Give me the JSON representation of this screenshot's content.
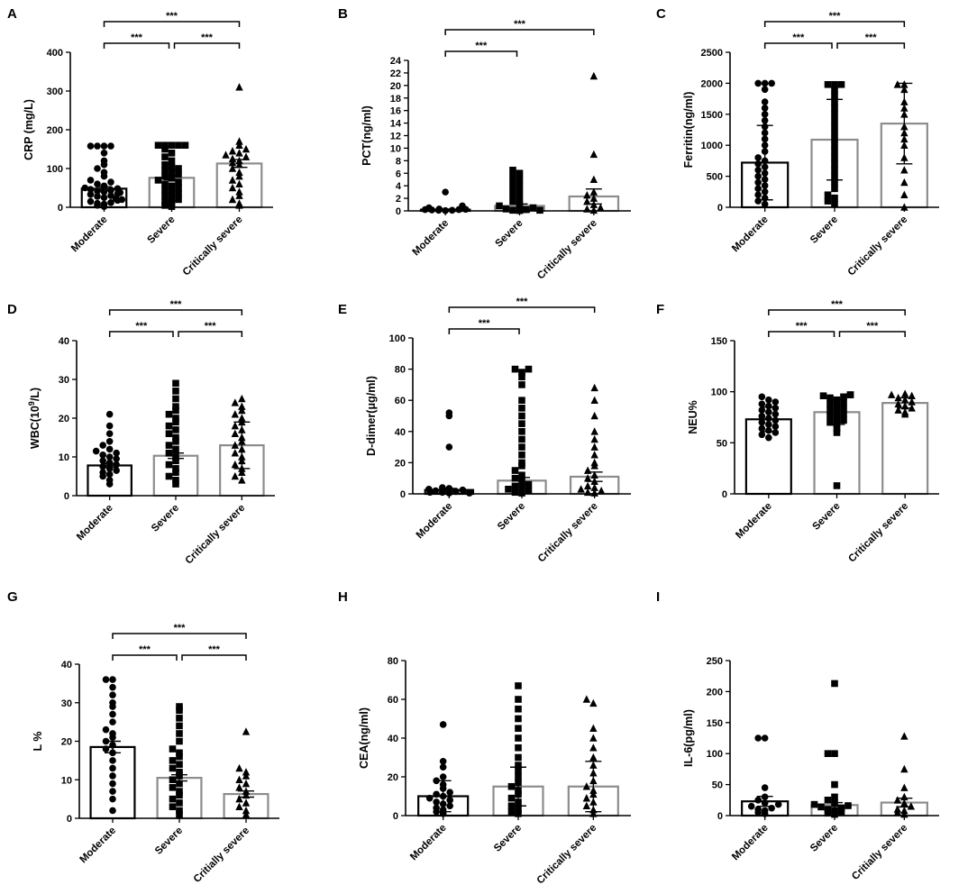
{
  "figure": {
    "colors": {
      "black": "#000000",
      "grey": "#8c8c8c"
    },
    "panels": [
      {
        "id": "A",
        "label": "A",
        "ylabel": "CRP (mg/L)",
        "ylabel_sup": "",
        "ylabel_after": "",
        "ylim": [
          0,
          400
        ],
        "ticks": [
          0,
          100,
          200,
          300,
          400
        ],
        "categories": [
          "Moderate",
          "Severe",
          "Critically severe"
        ],
        "bar_means": [
          48,
          76,
          113
        ],
        "errors": [
          5,
          5,
          10
        ],
        "bar_colors": [
          "#000000",
          "#8c8c8c",
          "#8c8c8c"
        ],
        "markers": [
          "circle",
          "square",
          "triangle"
        ],
        "points": [
          [
            2,
            5,
            8,
            10,
            12,
            15,
            18,
            20,
            22,
            25,
            28,
            30,
            33,
            35,
            38,
            40,
            42,
            44,
            46,
            48,
            50,
            55,
            60,
            65,
            70,
            80,
            90,
            100,
            110,
            120,
            140,
            158,
            158,
            158,
            158
          ],
          [
            2,
            5,
            10,
            15,
            20,
            25,
            30,
            35,
            40,
            45,
            50,
            55,
            60,
            65,
            70,
            75,
            80,
            85,
            90,
            95,
            100,
            105,
            110,
            120,
            130,
            140,
            150,
            160,
            160,
            160,
            160,
            160
          ],
          [
            5,
            10,
            20,
            30,
            40,
            50,
            60,
            70,
            80,
            90,
            100,
            110,
            115,
            120,
            125,
            130,
            135,
            140,
            145,
            150,
            160,
            170,
            310
          ]
        ],
        "brackets": [
          {
            "from": 0,
            "to": 2,
            "label": "***"
          },
          {
            "from": 0,
            "to": 1,
            "label": "***"
          },
          {
            "from": 1,
            "to": 2,
            "label": "***"
          }
        ]
      },
      {
        "id": "B",
        "label": "B",
        "ylabel": "PCT(ng/ml)",
        "ylabel_sup": "",
        "ylabel_after": "",
        "ylim": [
          0,
          24
        ],
        "ticks": [
          0,
          2,
          4,
          6,
          8,
          10,
          12,
          14,
          16,
          18,
          20,
          22,
          24
        ],
        "categories": [
          "Moderate",
          "Severe",
          "Critically severe"
        ],
        "bar_means": [
          0.2,
          0.8,
          2.3
        ],
        "errors": [
          0.1,
          0.3,
          1.2
        ],
        "bar_colors": [
          "#000000",
          "#8c8c8c",
          "#8c8c8c"
        ],
        "markers": [
          "circle",
          "square",
          "triangle"
        ],
        "points": [
          [
            0.05,
            0.1,
            0.1,
            0.15,
            0.2,
            0.2,
            0.25,
            0.3,
            0.5,
            0.8,
            3
          ],
          [
            0.05,
            0.1,
            0.2,
            0.3,
            0.5,
            0.8,
            1,
            1.5,
            2,
            2.5,
            3,
            3.5,
            4,
            4.5,
            5,
            5.5,
            6,
            6.5,
            0.1,
            0.2
          ],
          [
            0.1,
            0.3,
            0.5,
            1,
            1.5,
            2,
            2.5,
            3,
            5,
            9,
            21.5
          ]
        ],
        "brackets": [
          {
            "from": 0,
            "to": 2,
            "label": "***"
          },
          {
            "from": 0,
            "to": 1,
            "label": "***"
          }
        ]
      },
      {
        "id": "C",
        "label": "C",
        "ylabel": "Ferritin(ng/ml)",
        "ylabel_sup": "",
        "ylabel_after": "",
        "ylim": [
          0,
          2500
        ],
        "ticks": [
          0,
          500,
          1000,
          1500,
          2000,
          2500
        ],
        "categories": [
          "Moderate",
          "Severe",
          "Critically severe"
        ],
        "bar_means": [
          720,
          1090,
          1350
        ],
        "errors": [
          600,
          650,
          650
        ],
        "bar_colors": [
          "#000000",
          "#8c8c8c",
          "#8c8c8c"
        ],
        "markers": [
          "circle",
          "square",
          "triangle"
        ],
        "points": [
          [
            50,
            100,
            150,
            200,
            250,
            300,
            350,
            400,
            450,
            500,
            550,
            600,
            650,
            700,
            750,
            800,
            900,
            1000,
            1100,
            1200,
            1300,
            1400,
            1500,
            1600,
            1700,
            1900,
            2000,
            2000,
            2000
          ],
          [
            50,
            100,
            150,
            200,
            300,
            400,
            500,
            600,
            700,
            800,
            900,
            1000,
            1100,
            1200,
            1300,
            1400,
            1500,
            1600,
            1700,
            1800,
            1900,
            1980,
            1980,
            1980
          ],
          [
            0,
            200,
            400,
            600,
            800,
            1000,
            1100,
            1200,
            1300,
            1500,
            1600,
            1700,
            1900,
            1980,
            1980
          ]
        ],
        "brackets": [
          {
            "from": 0,
            "to": 2,
            "label": "***"
          },
          {
            "from": 0,
            "to": 1,
            "label": "***"
          },
          {
            "from": 1,
            "to": 2,
            "label": "***"
          }
        ]
      },
      {
        "id": "D",
        "label": "D",
        "ylabel": "WBC(10",
        "ylabel_sup": "9",
        "ylabel_after": "/L)",
        "ylim": [
          0,
          40
        ],
        "ticks": [
          0,
          10,
          20,
          30,
          40
        ],
        "categories": [
          "Moderate",
          "Severe",
          "Critically severe"
        ],
        "bar_means": [
          7.8,
          10.3,
          13
        ],
        "errors": [
          0.5,
          0.7,
          6
        ],
        "bar_colors": [
          "#000000",
          "#8c8c8c",
          "#8c8c8c"
        ],
        "markers": [
          "circle",
          "square",
          "triangle"
        ],
        "points": [
          [
            3,
            4,
            5,
            5.5,
            6,
            6.5,
            7,
            7.5,
            8,
            8.5,
            9,
            9.5,
            10,
            10.5,
            11,
            11.5,
            12,
            13,
            14,
            16,
            18,
            21
          ],
          [
            3,
            4,
            5,
            6,
            7,
            8,
            9,
            10,
            11,
            12,
            13,
            14,
            15,
            16,
            17,
            18,
            19,
            20,
            21,
            22,
            23,
            25,
            27,
            29
          ],
          [
            4,
            5,
            6,
            7,
            8,
            9,
            10,
            11,
            12,
            13,
            14,
            15,
            16,
            17,
            18,
            19,
            20,
            21,
            22,
            23,
            24,
            25
          ]
        ],
        "brackets": [
          {
            "from": 0,
            "to": 2,
            "label": "***"
          },
          {
            "from": 0,
            "to": 1,
            "label": "***"
          },
          {
            "from": 1,
            "to": 2,
            "label": "***"
          }
        ]
      },
      {
        "id": "E",
        "label": "E",
        "ylabel": "D-dimer(μg/ml)",
        "ylabel_sup": "",
        "ylabel_after": "",
        "ylim": [
          0,
          100
        ],
        "ticks": [
          0,
          20,
          40,
          60,
          80,
          100
        ],
        "categories": [
          "Moderate",
          "Severe",
          "Critically severe"
        ],
        "bar_means": [
          2.5,
          8.5,
          11
        ],
        "errors": [
          1,
          2,
          3
        ],
        "bar_colors": [
          "#000000",
          "#8c8c8c",
          "#8c8c8c"
        ],
        "markers": [
          "circle",
          "square",
          "triangle"
        ],
        "points": [
          [
            0.5,
            1,
            1.5,
            2,
            2.5,
            3,
            3.5,
            4,
            0.5,
            1,
            2,
            30,
            50,
            52
          ],
          [
            0.5,
            1,
            2,
            3,
            4,
            5,
            6,
            8,
            10,
            12,
            15,
            18,
            20,
            25,
            30,
            35,
            40,
            45,
            50,
            55,
            60,
            70,
            75,
            78,
            80,
            80
          ],
          [
            0.5,
            1,
            2,
            3,
            4,
            5,
            8,
            10,
            12,
            15,
            18,
            20,
            25,
            30,
            35,
            40,
            50,
            60,
            68
          ]
        ],
        "brackets": [
          {
            "from": 0,
            "to": 2,
            "label": "***"
          },
          {
            "from": 0,
            "to": 1,
            "label": "***"
          }
        ]
      },
      {
        "id": "F",
        "label": "F",
        "ylabel": "NEU%",
        "ylabel_sup": "",
        "ylabel_after": "",
        "ylim": [
          0,
          150
        ],
        "ticks": [
          0,
          50,
          100,
          150
        ],
        "categories": [
          "Moderate",
          "Severe",
          "Critically severe"
        ],
        "bar_means": [
          73,
          80,
          89
        ],
        "errors": [
          12,
          12,
          5
        ],
        "bar_colors": [
          "#000000",
          "#8c8c8c",
          "#8c8c8c"
        ],
        "markers": [
          "circle",
          "square",
          "triangle"
        ],
        "points": [
          [
            55,
            58,
            60,
            62,
            64,
            66,
            68,
            70,
            72,
            74,
            76,
            78,
            80,
            82,
            84,
            86,
            88,
            90,
            92,
            95
          ],
          [
            8,
            60,
            64,
            68,
            70,
            72,
            74,
            76,
            78,
            80,
            82,
            84,
            86,
            88,
            90,
            92,
            94,
            95,
            96,
            97,
            97
          ],
          [
            78,
            80,
            82,
            84,
            86,
            88,
            90,
            92,
            94,
            96,
            97,
            98
          ]
        ],
        "brackets": [
          {
            "from": 0,
            "to": 2,
            "label": "***"
          },
          {
            "from": 0,
            "to": 1,
            "label": "***"
          },
          {
            "from": 1,
            "to": 2,
            "label": "***"
          }
        ]
      },
      {
        "id": "G",
        "label": "G",
        "ylabel": "L %",
        "ylabel_sup": "",
        "ylabel_after": "",
        "ylim": [
          0,
          40
        ],
        "ticks": [
          0,
          10,
          20,
          30,
          40
        ],
        "categories": [
          "Moderate",
          "Severe",
          "Critially severe"
        ],
        "bar_means": [
          18.5,
          10.5,
          6.3
        ],
        "errors": [
          1.5,
          0.8,
          0.8
        ],
        "bar_colors": [
          "#000000",
          "#8c8c8c",
          "#8c8c8c"
        ],
        "markers": [
          "circle",
          "square",
          "triangle"
        ],
        "points": [
          [
            2,
            5,
            7,
            9,
            11,
            13,
            15,
            17,
            18,
            19,
            20,
            21,
            22,
            23,
            25,
            27,
            29,
            30,
            32,
            34,
            36,
            36
          ],
          [
            1,
            2,
            3,
            4,
            5,
            6,
            7,
            8,
            9,
            10,
            11,
            12,
            13,
            14,
            15,
            16,
            17,
            18,
            20,
            22,
            24,
            26,
            28,
            29
          ],
          [
            1,
            2,
            3,
            4,
            5,
            6,
            7,
            8,
            9,
            10,
            11,
            12,
            13,
            22.5
          ]
        ],
        "brackets": [
          {
            "from": 0,
            "to": 2,
            "label": "***"
          },
          {
            "from": 0,
            "to": 1,
            "label": "***"
          },
          {
            "from": 1,
            "to": 2,
            "label": "***"
          }
        ]
      },
      {
        "id": "H",
        "label": "H",
        "ylabel": "CEA(ng/ml)",
        "ylabel_sup": "",
        "ylabel_after": "",
        "ylim": [
          0,
          80
        ],
        "ticks": [
          0,
          20,
          40,
          60,
          80
        ],
        "categories": [
          "Moderate",
          "Severe",
          "Critically severe"
        ],
        "bar_means": [
          10,
          15,
          15
        ],
        "errors": [
          8,
          10,
          13
        ],
        "bar_colors": [
          "#000000",
          "#8c8c8c",
          "#8c8c8c"
        ],
        "markers": [
          "circle",
          "square",
          "triangle"
        ],
        "points": [
          [
            1,
            2,
            3,
            4,
            5,
            6,
            7,
            8,
            9,
            10,
            11,
            12,
            14,
            16,
            18,
            20,
            25,
            28,
            47
          ],
          [
            1,
            2,
            3,
            5,
            7,
            9,
            11,
            13,
            15,
            17,
            20,
            23,
            26,
            30,
            35,
            40,
            45,
            50,
            55,
            60,
            67
          ],
          [
            1,
            3,
            5,
            7,
            9,
            11,
            13,
            15,
            18,
            22,
            26,
            30,
            35,
            40,
            45,
            58,
            60
          ]
        ],
        "brackets": []
      },
      {
        "id": "I",
        "label": "I",
        "ylabel": "IL-6(pg/ml)",
        "ylabel_sup": "",
        "ylabel_after": "",
        "ylim": [
          0,
          250
        ],
        "ticks": [
          0,
          50,
          100,
          150,
          200,
          250
        ],
        "categories": [
          "Moderate",
          "Severe",
          "Critially severe"
        ],
        "bar_means": [
          23,
          17,
          21
        ],
        "errors": [
          8,
          4,
          7
        ],
        "bar_colors": [
          "#000000",
          "#8c8c8c",
          "#8c8c8c"
        ],
        "markers": [
          "circle",
          "square",
          "triangle"
        ],
        "points": [
          [
            3,
            5,
            8,
            10,
            12,
            15,
            18,
            20,
            25,
            30,
            45,
            125,
            125
          ],
          [
            2,
            4,
            6,
            8,
            10,
            12,
            14,
            16,
            18,
            20,
            25,
            30,
            50,
            100,
            100,
            213
          ],
          [
            2,
            5,
            8,
            10,
            15,
            20,
            25,
            30,
            45,
            75,
            128
          ]
        ],
        "brackets": []
      }
    ]
  }
}
